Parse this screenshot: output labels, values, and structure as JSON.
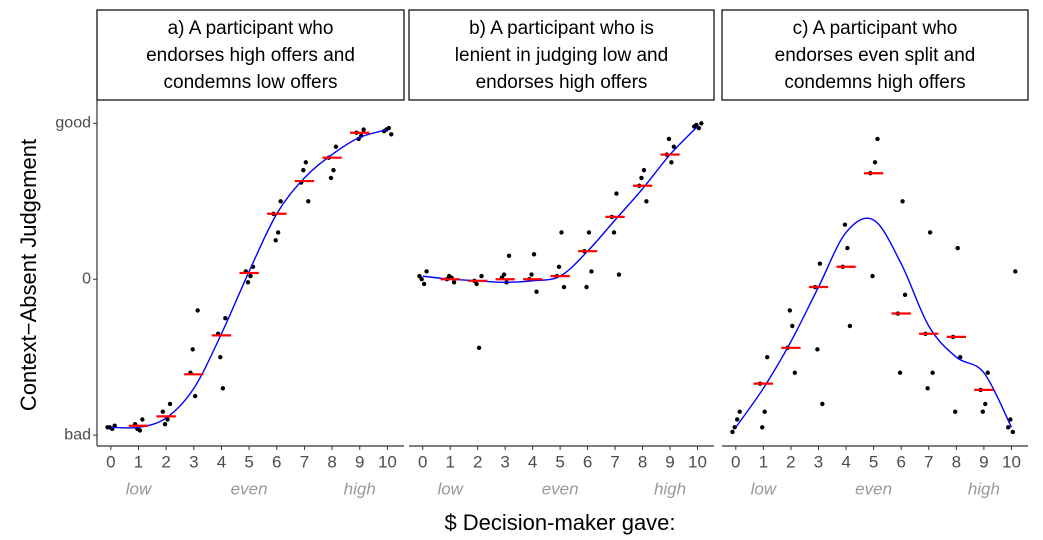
{
  "axis_labels": {
    "x": "$ Decision-maker gave:",
    "y": "Context−Absent Judgement"
  },
  "chart_data": [
    {
      "type": "scatter",
      "title_lines": [
        "a) A participant who",
        "endorses high offers and",
        "condemns low offers"
      ],
      "xticks": [
        0,
        1,
        2,
        3,
        4,
        5,
        6,
        7,
        8,
        9,
        10
      ],
      "xlim": [
        -0.5,
        10.6
      ],
      "ylim": [
        -1.07,
        1.15
      ],
      "yticks": [
        {
          "value": -1,
          "label": "bad"
        },
        0,
        {
          "value": 1,
          "label": "good"
        }
      ],
      "annotations": [
        {
          "text": "low",
          "x": 1
        },
        {
          "text": "even",
          "x": 5
        },
        {
          "text": "high",
          "x": 9
        }
      ],
      "points": {
        "color": "#000000",
        "x": [
          -0.12,
          0.05,
          0.14,
          -0.04,
          0.88,
          1.05,
          1.14,
          0.96,
          1.88,
          2.05,
          2.14,
          1.96,
          2.88,
          3.05,
          3.14,
          2.96,
          3.88,
          4.05,
          4.14,
          3.96,
          4.88,
          5.05,
          5.14,
          4.96,
          5.88,
          6.05,
          6.14,
          5.96,
          6.88,
          7.05,
          7.14,
          6.96,
          7.88,
          8.05,
          8.14,
          7.96,
          8.88,
          9.05,
          9.14,
          8.96,
          9.88,
          10.05,
          10.14,
          9.96
        ],
        "y": [
          -0.95,
          -0.96,
          -0.94,
          -0.95,
          -0.93,
          -0.97,
          -0.9,
          -0.96,
          -0.85,
          -0.9,
          -0.8,
          -0.93,
          -0.6,
          -0.75,
          -0.2,
          -0.45,
          -0.35,
          -0.7,
          -0.25,
          -0.5,
          0.05,
          0.02,
          0.08,
          -0.02,
          0.42,
          0.3,
          0.5,
          0.25,
          0.62,
          0.75,
          0.5,
          0.7,
          0.78,
          0.7,
          0.85,
          0.65,
          0.94,
          0.92,
          0.96,
          0.9,
          0.95,
          0.97,
          0.93,
          0.96
        ]
      },
      "means": {
        "color": "#ff0000",
        "values": [
          null,
          -0.94,
          -0.88,
          -0.61,
          -0.36,
          0.04,
          0.42,
          0.63,
          0.78,
          0.94,
          null
        ]
      },
      "smooth": {
        "color": "#0000ff",
        "x": [
          0,
          1,
          2,
          3,
          4,
          5,
          6,
          7,
          8,
          9,
          10
        ],
        "values": [
          -0.95,
          -0.95,
          -0.89,
          -0.7,
          -0.35,
          0.05,
          0.42,
          0.65,
          0.8,
          0.91,
          0.96
        ]
      }
    },
    {
      "type": "scatter",
      "title_lines": [
        "b) A participant who is",
        "lenient in judging low and",
        "endorses high offers"
      ],
      "xticks": [
        0,
        1,
        2,
        3,
        4,
        5,
        6,
        7,
        8,
        9,
        10
      ],
      "xlim": [
        -0.5,
        10.6
      ],
      "ylim": [
        -1.07,
        1.15
      ],
      "annotations": [
        {
          "text": "low",
          "x": 1
        },
        {
          "text": "even",
          "x": 5
        },
        {
          "text": "high",
          "x": 9
        }
      ],
      "points": {
        "color": "#000000",
        "x": [
          -0.12,
          0.05,
          0.14,
          -0.04,
          0.88,
          1.05,
          1.14,
          0.96,
          1.88,
          2.05,
          2.14,
          1.96,
          2.88,
          3.05,
          3.14,
          2.96,
          3.88,
          4.05,
          4.14,
          3.96,
          4.88,
          5.05,
          5.14,
          4.96,
          5.88,
          6.05,
          6.14,
          5.96,
          6.88,
          7.05,
          7.14,
          6.96,
          7.88,
          8.05,
          8.14,
          7.96,
          8.88,
          9.05,
          9.14,
          8.96,
          9.88,
          10.05,
          10.14,
          9.96
        ],
        "y": [
          0.02,
          -0.03,
          0.05,
          0,
          0,
          0.01,
          -0.02,
          0.02,
          -0.01,
          -0.44,
          0.02,
          -0.03,
          0.01,
          -0.02,
          0.15,
          0.03,
          0,
          0.16,
          -0.08,
          0.03,
          0.02,
          0.3,
          -0.05,
          0.08,
          0.18,
          0.3,
          0.05,
          -0.05,
          0.4,
          0.55,
          0.03,
          0.3,
          0.6,
          0.7,
          0.5,
          0.65,
          0.8,
          0.75,
          0.85,
          0.9,
          0.98,
          0.97,
          1.0,
          0.99
        ]
      },
      "means": {
        "color": "#ff0000",
        "values": [
          null,
          0,
          -0.01,
          0,
          0,
          0.02,
          0.18,
          0.4,
          0.6,
          0.8,
          null
        ]
      },
      "smooth": {
        "color": "#0000ff",
        "x": [
          0,
          1,
          2,
          3,
          4,
          5,
          6,
          7,
          8,
          9,
          10
        ],
        "values": [
          0.02,
          0,
          -0.01,
          -0.02,
          -0.01,
          0.02,
          0.18,
          0.38,
          0.58,
          0.8,
          0.98
        ]
      }
    },
    {
      "type": "scatter",
      "title_lines": [
        "c) A participant who",
        "endorses even split and",
        "condemns high offers"
      ],
      "xticks": [
        0,
        1,
        2,
        3,
        4,
        5,
        6,
        7,
        8,
        9,
        10
      ],
      "xlim": [
        -0.5,
        10.6
      ],
      "ylim": [
        -1.07,
        1.15
      ],
      "annotations": [
        {
          "text": "low",
          "x": 1
        },
        {
          "text": "even",
          "x": 5
        },
        {
          "text": "high",
          "x": 9
        }
      ],
      "points": {
        "color": "#000000",
        "x": [
          -0.12,
          0.05,
          0.14,
          -0.04,
          0.88,
          1.05,
          1.14,
          0.96,
          1.88,
          2.05,
          2.14,
          1.96,
          2.88,
          3.05,
          3.14,
          2.96,
          3.88,
          4.05,
          4.14,
          3.96,
          4.88,
          5.05,
          5.14,
          4.96,
          5.88,
          6.05,
          6.14,
          5.96,
          6.88,
          7.05,
          7.14,
          6.96,
          7.88,
          8.05,
          8.14,
          7.96,
          8.88,
          9.05,
          9.14,
          8.96,
          9.88,
          10.05,
          10.14,
          9.96
        ],
        "y": [
          -0.98,
          -0.9,
          -0.85,
          -0.95,
          -0.67,
          -0.85,
          -0.5,
          -0.95,
          -0.44,
          -0.3,
          -0.6,
          -0.2,
          -0.05,
          0.1,
          -0.8,
          -0.45,
          0.08,
          0.2,
          -0.3,
          0.35,
          0.68,
          0.75,
          0.9,
          0.02,
          -0.22,
          0.5,
          -0.1,
          -0.6,
          -0.35,
          0.3,
          -0.6,
          -0.7,
          -0.37,
          0.2,
          -0.5,
          -0.85,
          -0.71,
          -0.8,
          -0.6,
          -0.85,
          -0.95,
          -0.98,
          0.05,
          -0.9
        ]
      },
      "means": {
        "color": "#ff0000",
        "values": [
          null,
          -0.67,
          -0.44,
          -0.05,
          0.08,
          0.68,
          -0.22,
          -0.35,
          -0.37,
          -0.71,
          null
        ]
      },
      "smooth": {
        "color": "#0000ff",
        "x": [
          0,
          1,
          2,
          3,
          4,
          5,
          6,
          7,
          8,
          9,
          10
        ],
        "values": [
          -0.95,
          -0.7,
          -0.4,
          -0.05,
          0.3,
          0.38,
          0.1,
          -0.3,
          -0.5,
          -0.6,
          -0.95
        ]
      }
    }
  ]
}
